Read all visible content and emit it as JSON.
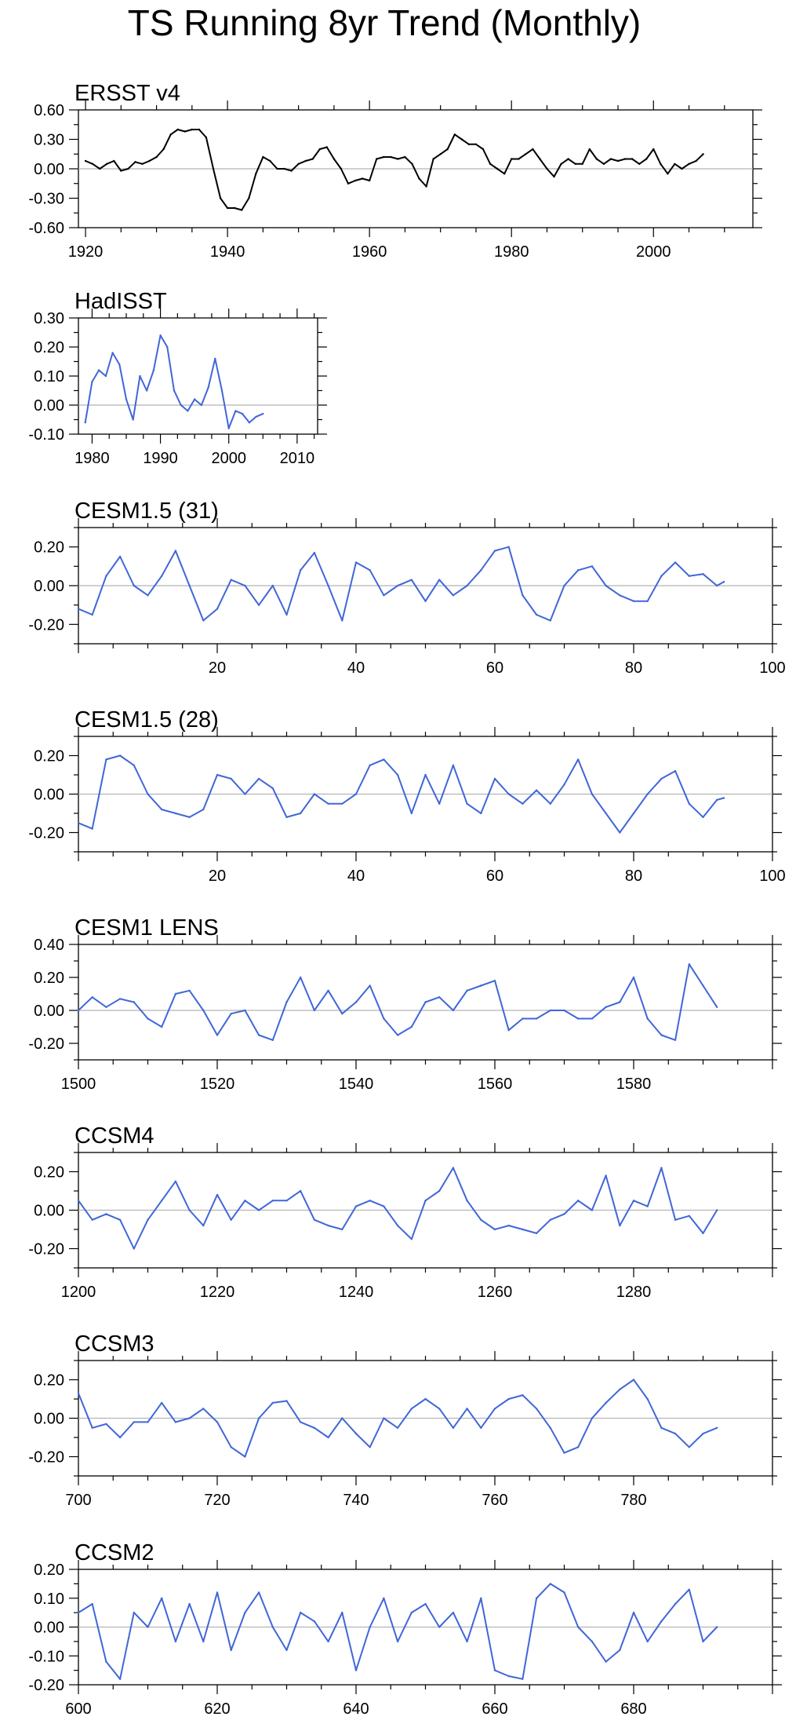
{
  "title": "TS Running 8yr Trend (Monthly)",
  "chart_data": [
    {
      "type": "line",
      "title": "ERSST v4",
      "color": "#000000",
      "xlim": [
        1919,
        2014
      ],
      "ylim": [
        -0.6,
        0.6
      ],
      "xticks": [
        1920,
        1940,
        1960,
        1980,
        2000
      ],
      "yticks": [
        -0.6,
        -0.3,
        0.0,
        0.3,
        0.6
      ],
      "ytick_labels": [
        "-0.60",
        "-0.30",
        "0.00",
        "0.30",
        "0.60"
      ],
      "zero_line": true,
      "x": [
        1920,
        1921,
        1922,
        1923,
        1924,
        1925,
        1926,
        1927,
        1928,
        1929,
        1930,
        1931,
        1932,
        1933,
        1934,
        1935,
        1936,
        1937,
        1938,
        1939,
        1940,
        1941,
        1942,
        1943,
        1944,
        1945,
        1946,
        1947,
        1948,
        1949,
        1950,
        1951,
        1952,
        1953,
        1954,
        1955,
        1956,
        1957,
        1958,
        1959,
        1960,
        1961,
        1962,
        1963,
        1964,
        1965,
        1966,
        1967,
        1968,
        1969,
        1970,
        1971,
        1972,
        1973,
        1974,
        1975,
        1976,
        1977,
        1978,
        1979,
        1980,
        1981,
        1982,
        1983,
        1984,
        1985,
        1986,
        1987,
        1988,
        1989,
        1990,
        1991,
        1992,
        1993,
        1994,
        1995,
        1996,
        1997,
        1998,
        1999,
        2000,
        2001,
        2002,
        2003,
        2004,
        2005,
        2006,
        2007
      ],
      "values": [
        0.08,
        0.05,
        0.0,
        0.05,
        0.08,
        -0.02,
        0.0,
        0.07,
        0.05,
        0.08,
        0.12,
        0.2,
        0.35,
        0.4,
        0.38,
        0.4,
        0.4,
        0.32,
        0.0,
        -0.3,
        -0.4,
        -0.4,
        -0.42,
        -0.3,
        -0.05,
        0.12,
        0.08,
        0.0,
        0.0,
        -0.02,
        0.05,
        0.08,
        0.1,
        0.2,
        0.22,
        0.1,
        0.0,
        -0.15,
        -0.12,
        -0.1,
        -0.12,
        0.1,
        0.12,
        0.12,
        0.1,
        0.12,
        0.05,
        -0.1,
        -0.18,
        0.1,
        0.15,
        0.2,
        0.35,
        0.3,
        0.25,
        0.25,
        0.2,
        0.05,
        0.0,
        -0.05,
        0.1,
        0.1,
        0.15,
        0.2,
        0.1,
        0.0,
        -0.08,
        0.05,
        0.1,
        0.05,
        0.05,
        0.2,
        0.1,
        0.05,
        0.1,
        0.08,
        0.1,
        0.1,
        0.05,
        0.1,
        0.2,
        0.05,
        -0.05,
        0.05,
        0.0,
        0.05,
        0.08,
        0.15
      ]
    },
    {
      "type": "line",
      "title": "HadISST",
      "color": "#4066d8",
      "xlim": [
        1978,
        2013
      ],
      "ylim": [
        -0.1,
        0.3
      ],
      "xticks": [
        1980,
        1990,
        2000,
        2010
      ],
      "yticks": [
        -0.1,
        0.0,
        0.1,
        0.2,
        0.3
      ],
      "ytick_labels": [
        "-0.10",
        "0.00",
        "0.10",
        "0.20",
        "0.30"
      ],
      "zero_line": true,
      "x": [
        1979,
        1980,
        1981,
        1982,
        1983,
        1984,
        1985,
        1986,
        1987,
        1988,
        1989,
        1990,
        1991,
        1992,
        1993,
        1994,
        1995,
        1996,
        1997,
        1998,
        1999,
        2000,
        2001,
        2002,
        2003,
        2004,
        2005
      ],
      "values": [
        -0.06,
        0.08,
        0.12,
        0.1,
        0.18,
        0.14,
        0.02,
        -0.05,
        0.1,
        0.05,
        0.12,
        0.24,
        0.2,
        0.05,
        0.0,
        -0.02,
        0.02,
        0.0,
        0.06,
        0.16,
        0.05,
        -0.08,
        -0.02,
        -0.03,
        -0.06,
        -0.04,
        -0.03
      ]
    },
    {
      "type": "line",
      "title": "CESM1.5 (31)",
      "color": "#4066d8",
      "xlim": [
        0,
        100
      ],
      "ylim": [
        -0.3,
        0.3
      ],
      "xticks": [
        20,
        40,
        60,
        80,
        100
      ],
      "yticks": [
        -0.2,
        0.0,
        0.2
      ],
      "ytick_labels": [
        "-0.20",
        "0.00",
        "0.20"
      ],
      "zero_line": true,
      "x": [
        0,
        2,
        4,
        6,
        8,
        10,
        12,
        14,
        16,
        18,
        20,
        22,
        24,
        26,
        28,
        30,
        32,
        34,
        36,
        38,
        40,
        42,
        44,
        46,
        48,
        50,
        52,
        54,
        56,
        58,
        60,
        62,
        64,
        66,
        68,
        70,
        72,
        74,
        76,
        78,
        80,
        82,
        84,
        86,
        88,
        90,
        92,
        93
      ],
      "values": [
        -0.12,
        -0.15,
        0.05,
        0.15,
        0.0,
        -0.05,
        0.05,
        0.18,
        0.0,
        -0.18,
        -0.12,
        0.03,
        0.0,
        -0.1,
        0.0,
        -0.15,
        0.08,
        0.17,
        0.0,
        -0.18,
        0.12,
        0.08,
        -0.05,
        0.0,
        0.03,
        -0.08,
        0.03,
        -0.05,
        0.0,
        0.08,
        0.18,
        0.2,
        -0.05,
        -0.15,
        -0.18,
        0.0,
        0.08,
        0.1,
        0.0,
        -0.05,
        -0.08,
        -0.08,
        0.05,
        0.12,
        0.05,
        0.06,
        0.0,
        0.02
      ]
    },
    {
      "type": "line",
      "title": "CESM1.5 (28)",
      "color": "#4066d8",
      "xlim": [
        0,
        100
      ],
      "ylim": [
        -0.3,
        0.3
      ],
      "xticks": [
        20,
        40,
        60,
        80,
        100
      ],
      "yticks": [
        -0.2,
        0.0,
        0.2
      ],
      "ytick_labels": [
        "-0.20",
        "0.00",
        "0.20"
      ],
      "zero_line": true,
      "x": [
        0,
        2,
        4,
        6,
        8,
        10,
        12,
        14,
        16,
        18,
        20,
        22,
        24,
        26,
        28,
        30,
        32,
        34,
        36,
        38,
        40,
        42,
        44,
        46,
        48,
        50,
        52,
        54,
        56,
        58,
        60,
        62,
        64,
        66,
        68,
        70,
        72,
        74,
        76,
        78,
        80,
        82,
        84,
        86,
        88,
        90,
        92,
        93
      ],
      "values": [
        -0.15,
        -0.18,
        0.18,
        0.2,
        0.15,
        0.0,
        -0.08,
        -0.1,
        -0.12,
        -0.08,
        0.1,
        0.08,
        0.0,
        0.08,
        0.03,
        -0.12,
        -0.1,
        0.0,
        -0.05,
        -0.05,
        0.0,
        0.15,
        0.18,
        0.1,
        -0.1,
        0.1,
        -0.05,
        0.15,
        -0.05,
        -0.1,
        0.08,
        0.0,
        -0.05,
        0.02,
        -0.05,
        0.05,
        0.18,
        0.0,
        -0.1,
        -0.2,
        -0.1,
        0.0,
        0.08,
        0.12,
        -0.05,
        -0.12,
        -0.03,
        -0.02
      ]
    },
    {
      "type": "line",
      "title": "CESM1 LENS",
      "color": "#4066d8",
      "xlim": [
        1500,
        1600
      ],
      "ylim": [
        -0.3,
        0.4
      ],
      "xticks": [
        1500,
        1520,
        1540,
        1560,
        1580
      ],
      "yticks": [
        -0.2,
        0.0,
        0.2,
        0.4
      ],
      "ytick_labels": [
        "-0.20",
        "0.00",
        "0.20",
        "0.40"
      ],
      "zero_line": true,
      "x": [
        1500,
        1502,
        1504,
        1506,
        1508,
        1510,
        1512,
        1514,
        1516,
        1518,
        1520,
        1522,
        1524,
        1526,
        1528,
        1530,
        1532,
        1534,
        1536,
        1538,
        1540,
        1542,
        1544,
        1546,
        1548,
        1550,
        1552,
        1554,
        1556,
        1558,
        1560,
        1562,
        1564,
        1566,
        1568,
        1570,
        1572,
        1574,
        1576,
        1578,
        1580,
        1582,
        1584,
        1586,
        1588,
        1590,
        1592
      ],
      "values": [
        0.0,
        0.08,
        0.02,
        0.07,
        0.05,
        -0.05,
        -0.1,
        0.1,
        0.12,
        0.0,
        -0.15,
        -0.02,
        0.0,
        -0.15,
        -0.18,
        0.05,
        0.2,
        0.0,
        0.12,
        -0.02,
        0.05,
        0.15,
        -0.05,
        -0.15,
        -0.1,
        0.05,
        0.08,
        0.0,
        0.12,
        0.15,
        0.18,
        -0.12,
        -0.05,
        -0.05,
        0.0,
        0.0,
        -0.05,
        -0.05,
        0.02,
        0.05,
        0.2,
        -0.05,
        -0.15,
        -0.18,
        0.28,
        0.15,
        0.02
      ]
    },
    {
      "type": "line",
      "title": "CCSM4",
      "color": "#4066d8",
      "xlim": [
        1200,
        1300
      ],
      "ylim": [
        -0.3,
        0.3
      ],
      "xticks": [
        1200,
        1220,
        1240,
        1260,
        1280
      ],
      "yticks": [
        -0.2,
        0.0,
        0.2
      ],
      "ytick_labels": [
        "-0.20",
        "0.00",
        "0.20"
      ],
      "zero_line": true,
      "x": [
        1200,
        1202,
        1204,
        1206,
        1208,
        1210,
        1212,
        1214,
        1216,
        1218,
        1220,
        1222,
        1224,
        1226,
        1228,
        1230,
        1232,
        1234,
        1236,
        1238,
        1240,
        1242,
        1244,
        1246,
        1248,
        1250,
        1252,
        1254,
        1256,
        1258,
        1260,
        1262,
        1264,
        1266,
        1268,
        1270,
        1272,
        1274,
        1276,
        1278,
        1280,
        1282,
        1284,
        1286,
        1288,
        1290,
        1292
      ],
      "values": [
        0.05,
        -0.05,
        -0.02,
        -0.05,
        -0.2,
        -0.05,
        0.05,
        0.15,
        0.0,
        -0.08,
        0.08,
        -0.05,
        0.05,
        0.0,
        0.05,
        0.05,
        0.1,
        -0.05,
        -0.08,
        -0.1,
        0.02,
        0.05,
        0.02,
        -0.08,
        -0.15,
        0.05,
        0.1,
        0.22,
        0.05,
        -0.05,
        -0.1,
        -0.08,
        -0.1,
        -0.12,
        -0.05,
        -0.02,
        0.05,
        0.0,
        0.18,
        -0.08,
        0.05,
        0.02,
        0.22,
        -0.05,
        -0.03,
        -0.12,
        0.0
      ]
    },
    {
      "type": "line",
      "title": "CCSM3",
      "color": "#4066d8",
      "xlim": [
        700,
        800
      ],
      "ylim": [
        -0.3,
        0.3
      ],
      "xticks": [
        700,
        720,
        740,
        760,
        780
      ],
      "yticks": [
        -0.2,
        0.0,
        0.2
      ],
      "ytick_labels": [
        "-0.20",
        "0.00",
        "0.20"
      ],
      "zero_line": true,
      "x": [
        700,
        702,
        704,
        706,
        708,
        710,
        712,
        714,
        716,
        718,
        720,
        722,
        724,
        726,
        728,
        730,
        732,
        734,
        736,
        738,
        740,
        742,
        744,
        746,
        748,
        750,
        752,
        754,
        756,
        758,
        760,
        762,
        764,
        766,
        768,
        770,
        772,
        774,
        776,
        778,
        780,
        782,
        784,
        786,
        788,
        790,
        792
      ],
      "values": [
        0.13,
        -0.05,
        -0.03,
        -0.1,
        -0.02,
        -0.02,
        0.08,
        -0.02,
        0.0,
        0.05,
        -0.02,
        -0.15,
        -0.2,
        0.0,
        0.08,
        0.09,
        -0.02,
        -0.05,
        -0.1,
        0.0,
        -0.08,
        -0.15,
        0.0,
        -0.05,
        0.05,
        0.1,
        0.05,
        -0.05,
        0.05,
        -0.05,
        0.05,
        0.1,
        0.12,
        0.05,
        -0.05,
        -0.18,
        -0.15,
        0.0,
        0.08,
        0.15,
        0.2,
        0.1,
        -0.05,
        -0.08,
        -0.15,
        -0.08,
        -0.05
      ]
    },
    {
      "type": "line",
      "title": "CCSM2",
      "color": "#4066d8",
      "xlim": [
        600,
        700
      ],
      "ylim": [
        -0.2,
        0.2
      ],
      "xticks": [
        600,
        620,
        640,
        660,
        680
      ],
      "yticks": [
        -0.2,
        -0.1,
        0.0,
        0.1,
        0.2
      ],
      "ytick_labels": [
        "-0.20",
        "-0.10",
        "0.00",
        "0.10",
        "0.20"
      ],
      "zero_line": true,
      "x": [
        600,
        602,
        604,
        606,
        608,
        610,
        612,
        614,
        616,
        618,
        620,
        622,
        624,
        626,
        628,
        630,
        632,
        634,
        636,
        638,
        640,
        642,
        644,
        646,
        648,
        650,
        652,
        654,
        656,
        658,
        660,
        662,
        664,
        666,
        668,
        670,
        672,
        674,
        676,
        678,
        680,
        682,
        684,
        686,
        688,
        690,
        692
      ],
      "values": [
        0.05,
        0.08,
        -0.12,
        -0.18,
        0.05,
        0.0,
        0.1,
        -0.05,
        0.08,
        -0.05,
        0.12,
        -0.08,
        0.05,
        0.12,
        0.0,
        -0.08,
        0.05,
        0.02,
        -0.05,
        0.05,
        -0.15,
        0.0,
        0.1,
        -0.05,
        0.05,
        0.08,
        0.0,
        0.05,
        -0.05,
        0.1,
        -0.15,
        -0.17,
        -0.18,
        0.1,
        0.15,
        0.12,
        0.0,
        -0.05,
        -0.12,
        -0.08,
        0.05,
        -0.05,
        0.02,
        0.08,
        0.13,
        -0.05,
        0.0
      ]
    }
  ]
}
